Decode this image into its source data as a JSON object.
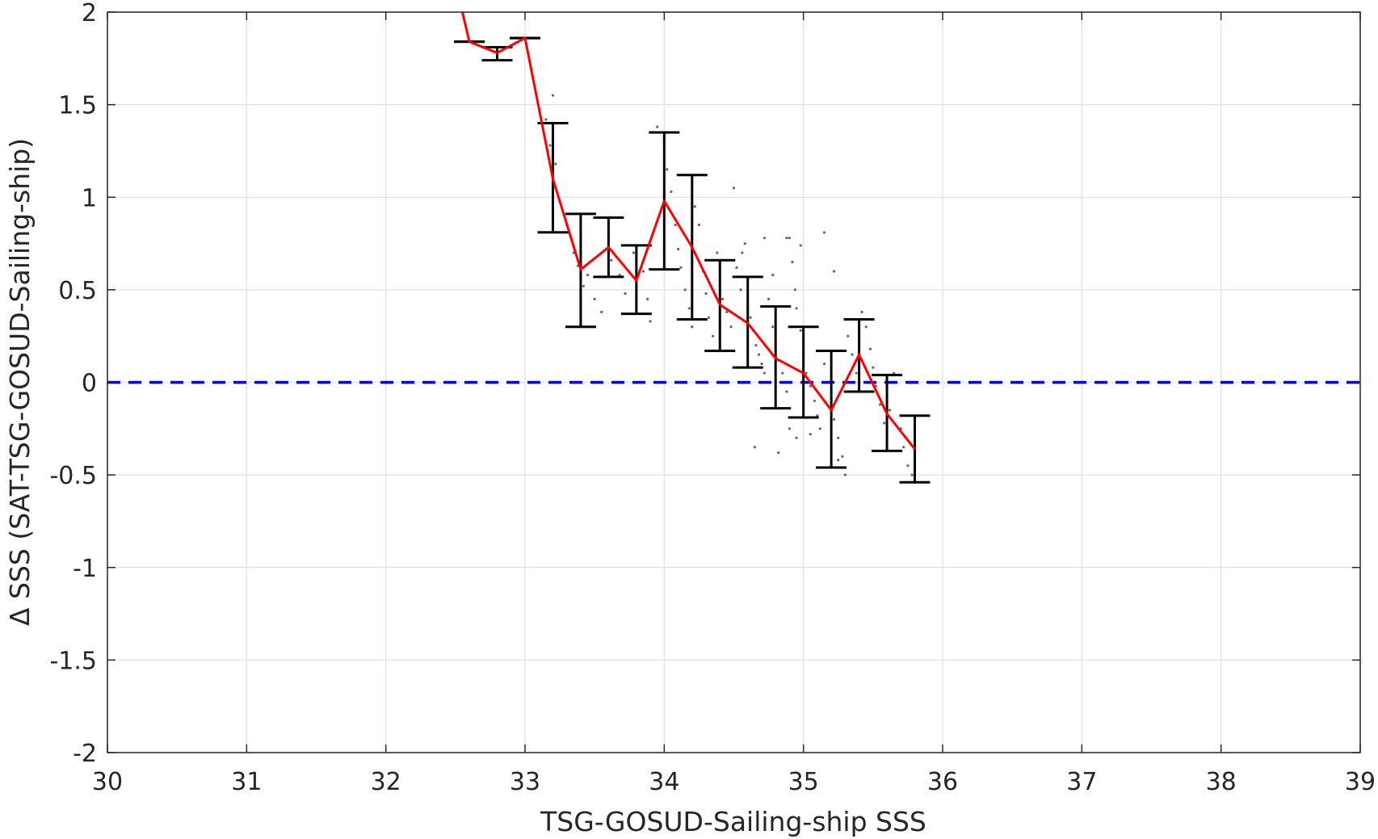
{
  "chart_data": {
    "type": "line",
    "xlabel": "TSG-GOSUD-Sailing-ship SSS",
    "ylabel": "Δ SSS (SAT-TSG-GOSUD-Sailing-ship)",
    "xlim": [
      30,
      39
    ],
    "ylim": [
      -2,
      2
    ],
    "xticks": [
      30,
      31,
      32,
      33,
      34,
      35,
      36,
      37,
      38,
      39
    ],
    "yticks": [
      -2,
      -1.5,
      -1,
      -0.5,
      0,
      0.5,
      1,
      1.5,
      2
    ],
    "xtick_labels": [
      "30",
      "31",
      "32",
      "33",
      "34",
      "35",
      "36",
      "37",
      "38",
      "39"
    ],
    "ytick_labels": [
      "-2",
      "-1.5",
      "-1",
      "-0.5",
      "0",
      "0.5",
      "1",
      "1.5",
      "2"
    ],
    "grid": true,
    "colors": {
      "mean_line": "#ff0000",
      "error_bars": "#000000",
      "zero_line": "#0000dd",
      "scatter": "#666666",
      "grid": "#e0e0e0",
      "axes": "#262626"
    },
    "reference_line": {
      "y": 0,
      "style": "dashed"
    },
    "series": [
      {
        "type": "line",
        "x": [
          32.55,
          32.6,
          32.8,
          33.0,
          33.2,
          33.4,
          33.6,
          33.8,
          34.0,
          34.2,
          34.4,
          34.6,
          34.8,
          35.0,
          35.2,
          35.4,
          35.6,
          35.8
        ],
        "y": [
          2.0,
          1.84,
          1.78,
          1.86,
          1.1,
          0.61,
          0.73,
          0.55,
          0.98,
          0.73,
          0.42,
          0.32,
          0.13,
          0.05,
          -0.15,
          0.15,
          -0.17,
          -0.36
        ]
      },
      {
        "type": "errorbar",
        "x": [
          32.6,
          32.8,
          33.0,
          33.2,
          33.4,
          33.6,
          33.8,
          34.0,
          34.2,
          34.4,
          34.6,
          34.8,
          35.0,
          35.2,
          35.4,
          35.6,
          35.8
        ],
        "low": [
          1.84,
          1.74,
          1.86,
          0.81,
          0.3,
          0.57,
          0.37,
          0.61,
          0.34,
          0.17,
          0.08,
          -0.14,
          -0.19,
          -0.46,
          -0.05,
          -0.37,
          -0.54
        ],
        "high": [
          1.84,
          1.81,
          1.86,
          1.4,
          0.91,
          0.89,
          0.74,
          1.35,
          1.12,
          0.66,
          0.57,
          0.41,
          0.3,
          0.17,
          0.34,
          0.04,
          -0.18
        ]
      },
      {
        "type": "scatter",
        "points": [
          [
            33.2,
            1.55
          ],
          [
            33.15,
            1.42
          ],
          [
            33.18,
            1.28
          ],
          [
            33.22,
            1.18
          ],
          [
            33.25,
            0.98
          ],
          [
            33.2,
            0.9
          ],
          [
            33.3,
            0.85
          ],
          [
            33.35,
            0.7
          ],
          [
            33.38,
            0.63
          ],
          [
            33.45,
            0.58
          ],
          [
            33.5,
            0.45
          ],
          [
            33.42,
            0.52
          ],
          [
            33.55,
            0.38
          ],
          [
            33.6,
            0.78
          ],
          [
            33.62,
            0.66
          ],
          [
            33.68,
            0.58
          ],
          [
            33.72,
            0.48
          ],
          [
            33.78,
            0.7
          ],
          [
            33.85,
            0.6
          ],
          [
            33.88,
            0.45
          ],
          [
            33.9,
            0.33
          ],
          [
            33.95,
            1.38
          ],
          [
            34.0,
            1.3
          ],
          [
            34.02,
            1.15
          ],
          [
            34.05,
            1.03
          ],
          [
            34.08,
            0.85
          ],
          [
            34.1,
            0.72
          ],
          [
            34.12,
            0.62
          ],
          [
            34.15,
            0.5
          ],
          [
            34.18,
            0.4
          ],
          [
            34.2,
            0.3
          ],
          [
            34.22,
            0.95
          ],
          [
            34.25,
            0.85
          ],
          [
            34.28,
            0.6
          ],
          [
            34.3,
            0.48
          ],
          [
            34.32,
            0.35
          ],
          [
            34.35,
            0.25
          ],
          [
            34.38,
            0.7
          ],
          [
            34.4,
            0.55
          ],
          [
            34.42,
            0.45
          ],
          [
            34.45,
            0.38
          ],
          [
            34.48,
            0.3
          ],
          [
            34.5,
            1.05
          ],
          [
            34.52,
            0.62
          ],
          [
            34.55,
            0.5
          ],
          [
            34.58,
            0.75
          ],
          [
            34.6,
            0.4
          ],
          [
            34.62,
            0.35
          ],
          [
            34.64,
            0.28
          ],
          [
            34.66,
            0.2
          ],
          [
            34.68,
            0.15
          ],
          [
            34.7,
            0.1
          ],
          [
            34.72,
            0.05
          ],
          [
            34.75,
            0.45
          ],
          [
            34.78,
            0.3
          ],
          [
            34.8,
            0.2
          ],
          [
            34.82,
            0.12
          ],
          [
            34.85,
            0.05
          ],
          [
            34.88,
            -0.05
          ],
          [
            34.9,
            0.78
          ],
          [
            34.92,
            0.65
          ],
          [
            34.94,
            0.5
          ],
          [
            34.95,
            0.4
          ],
          [
            34.98,
            0.28
          ],
          [
            35.0,
            0.15
          ],
          [
            35.02,
            0.05
          ],
          [
            35.05,
            -0.02
          ],
          [
            35.08,
            -0.1
          ],
          [
            35.1,
            -0.18
          ],
          [
            35.12,
            -0.25
          ],
          [
            35.15,
            0.1
          ],
          [
            35.18,
            0.0
          ],
          [
            35.2,
            -0.08
          ],
          [
            35.22,
            -0.2
          ],
          [
            35.25,
            -0.3
          ],
          [
            35.28,
            -0.4
          ],
          [
            35.3,
            -0.5
          ],
          [
            35.32,
            0.25
          ],
          [
            35.35,
            0.15
          ],
          [
            35.38,
            0.05
          ],
          [
            35.4,
            -0.05
          ],
          [
            35.42,
            0.38
          ],
          [
            35.45,
            0.3
          ],
          [
            35.48,
            0.18
          ],
          [
            35.5,
            0.08
          ],
          [
            35.52,
            -0.02
          ],
          [
            35.55,
            -0.12
          ],
          [
            35.58,
            -0.22
          ],
          [
            35.6,
            -0.3
          ],
          [
            35.62,
            -0.15
          ],
          [
            35.65,
            0.05
          ],
          [
            35.7,
            -0.25
          ],
          [
            35.72,
            -0.35
          ],
          [
            35.75,
            -0.45
          ],
          [
            35.78,
            -0.5
          ],
          [
            34.65,
            -0.35
          ],
          [
            34.82,
            -0.38
          ],
          [
            34.88,
            0.78
          ],
          [
            34.98,
            0.74
          ],
          [
            35.15,
            0.81
          ],
          [
            35.22,
            0.6
          ],
          [
            34.72,
            0.78
          ],
          [
            34.56,
            0.7
          ],
          [
            34.78,
            0.58
          ],
          [
            34.9,
            -0.25
          ],
          [
            34.95,
            -0.3
          ],
          [
            35.05,
            -0.28
          ],
          [
            35.25,
            -0.42
          ]
        ]
      }
    ]
  }
}
